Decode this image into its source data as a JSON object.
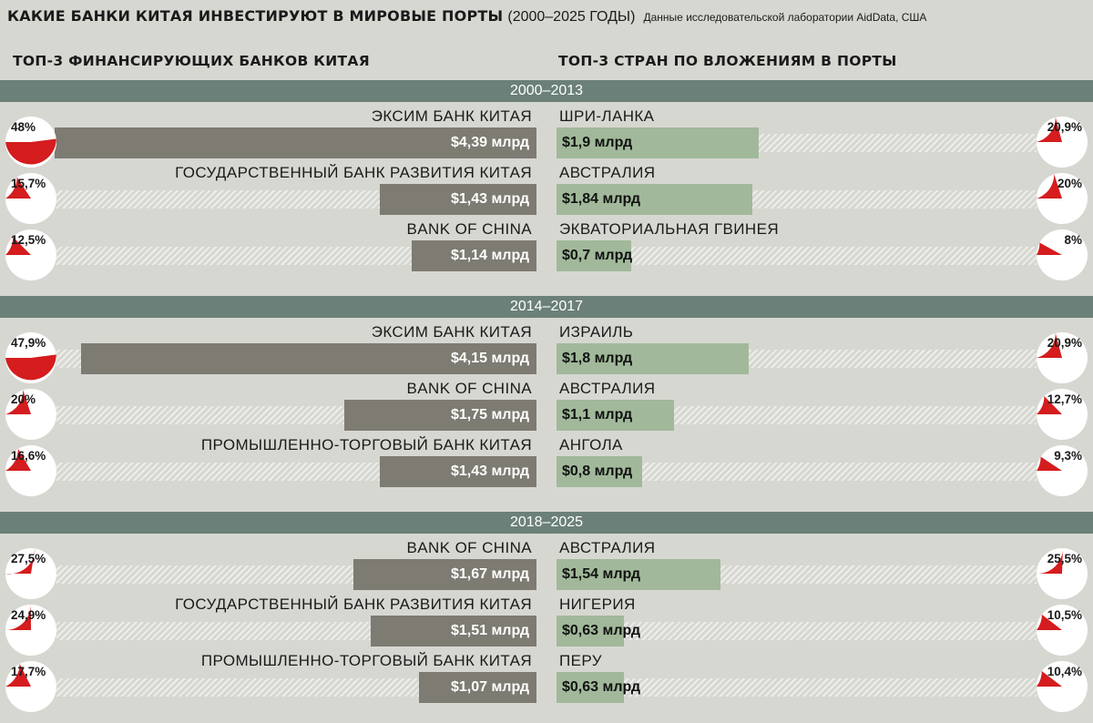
{
  "header": {
    "title_main": "КАКИЕ БАНКИ КИТАЯ ИНВЕСТИРУЮТ В МИРОВЫЕ ПОРТЫ",
    "title_years": "(2000–2025 ГОДЫ)",
    "source": "Данные исследовательской лаборатории AidData, США"
  },
  "columns": {
    "left": "ТОП-3 ФИНАНСИРУЮЩИХ БАНКОВ КИТАЯ",
    "right": "ТОП-3 СТРАН ПО ВЛОЖЕНИЯМ В ПОРТЫ"
  },
  "colors": {
    "background": "#d7d7d2",
    "band": "#6b8078",
    "bank_bar": "#7d7b72",
    "country_bar": "#a1b99a",
    "pie_slice": "#d51c1e",
    "pie_base": "#ffffff"
  },
  "chart_data": {
    "type": "bar",
    "unit": "млрд",
    "periods": [
      {
        "label": "2000–2013",
        "banks": [
          {
            "name": "ЭКСИМ БАНК КИТАЯ",
            "value": 4.39,
            "value_label": "$4,39 млрд",
            "share": 48,
            "share_label": "48%"
          },
          {
            "name": "ГОСУДАРСТВЕННЫЙ БАНК РАЗВИТИЯ КИТАЯ",
            "value": 1.43,
            "value_label": "$1,43 млрд",
            "share": 15.7,
            "share_label": "15,7%"
          },
          {
            "name": "BANK OF CHINA",
            "value": 1.14,
            "value_label": "$1,14 млрд",
            "share": 12.5,
            "share_label": "12,5%"
          }
        ],
        "countries": [
          {
            "name": "ШРИ-ЛАНКА",
            "value": 1.9,
            "value_label": "$1,9 млрд",
            "share": 20.9,
            "share_label": "20,9%"
          },
          {
            "name": "АВСТРАЛИЯ",
            "value": 1.84,
            "value_label": "$1,84 млрд",
            "share": 20,
            "share_label": "20%"
          },
          {
            "name": "ЭКВАТОРИАЛЬНАЯ ГВИНЕЯ",
            "value": 0.7,
            "value_label": "$0,7 млрд",
            "share": 8,
            "share_label": "8%"
          }
        ]
      },
      {
        "label": "2014–2017",
        "banks": [
          {
            "name": "ЭКСИМ БАНК КИТАЯ",
            "value": 4.15,
            "value_label": "$4,15 млрд",
            "share": 47.9,
            "share_label": "47,9%"
          },
          {
            "name": "BANK OF CHINA",
            "value": 1.75,
            "value_label": "$1,75 млрд",
            "share": 20,
            "share_label": "20%"
          },
          {
            "name": "ПРОМЫШЛЕННО-ТОРГОВЫЙ БАНК КИТАЯ",
            "value": 1.43,
            "value_label": "$1,43 млрд",
            "share": 16.6,
            "share_label": "16,6%"
          }
        ],
        "countries": [
          {
            "name": "ИЗРАИЛЬ",
            "value": 1.8,
            "value_label": "$1,8 млрд",
            "share": 20.9,
            "share_label": "20,9%"
          },
          {
            "name": "АВСТРАЛИЯ",
            "value": 1.1,
            "value_label": "$1,1 млрд",
            "share": 12.7,
            "share_label": "12,7%"
          },
          {
            "name": "АНГОЛА",
            "value": 0.8,
            "value_label": "$0,8 млрд",
            "share": 9.3,
            "share_label": "9,3%"
          }
        ]
      },
      {
        "label": "2018–2025",
        "banks": [
          {
            "name": "BANK OF CHINA",
            "value": 1.67,
            "value_label": "$1,67 млрд",
            "share": 27.5,
            "share_label": "27,5%"
          },
          {
            "name": "ГОСУДАРСТВЕННЫЙ БАНК РАЗВИТИЯ КИТАЯ",
            "value": 1.51,
            "value_label": "$1,51 млрд",
            "share": 24.9,
            "share_label": "24,9%"
          },
          {
            "name": "ПРОМЫШЛЕННО-ТОРГОВЫЙ БАНК КИТАЯ",
            "value": 1.07,
            "value_label": "$1,07 млрд",
            "share": 17.7,
            "share_label": "17,7%"
          }
        ],
        "countries": [
          {
            "name": "АВСТРАЛИЯ",
            "value": 1.54,
            "value_label": "$1,54 млрд",
            "share": 25.5,
            "share_label": "25,5%"
          },
          {
            "name": "НИГЕРИЯ",
            "value": 0.63,
            "value_label": "$0,63 млрд",
            "share": 10.5,
            "share_label": "10,5%"
          },
          {
            "name": "ПЕРУ",
            "value": 0.63,
            "value_label": "$0,63 млрд",
            "share": 10.4,
            "share_label": "10,4%"
          }
        ]
      }
    ]
  }
}
